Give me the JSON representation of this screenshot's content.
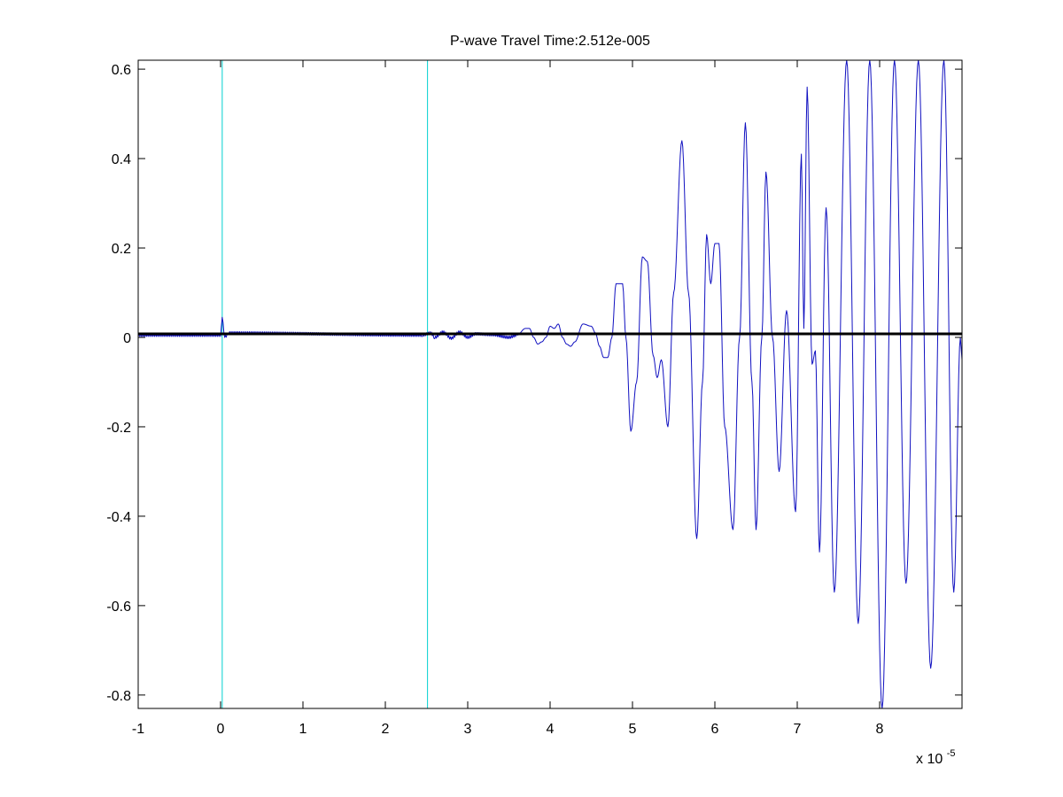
{
  "chart_data": {
    "type": "line",
    "title": "P-wave Travel Time:2.512e-005",
    "xlabel": "",
    "ylabel": "",
    "x_multiplier_label": {
      "base": "x 10",
      "exponent": "-5"
    },
    "xlim": [
      -1,
      9
    ],
    "ylim": [
      -0.83,
      0.62
    ],
    "xticks": [
      -1,
      0,
      1,
      2,
      3,
      4,
      5,
      6,
      7,
      8
    ],
    "xtick_labels": [
      "-1",
      "0",
      "1",
      "2",
      "3",
      "4",
      "5",
      "6",
      "7",
      "8"
    ],
    "yticks": [
      -0.8,
      -0.6,
      -0.4,
      -0.2,
      0,
      0.2,
      0.4,
      0.6
    ],
    "ytick_labels": [
      "-0.8",
      "-0.6",
      "-0.4",
      "-0.2",
      "0",
      "0.2",
      "0.4",
      "0.6"
    ],
    "grid": false,
    "legend": "none",
    "vertical_markers": [
      {
        "x": 0.02,
        "color": "#00d0d0"
      },
      {
        "x": 2.512,
        "color": "#00d0d0"
      }
    ],
    "threshold_line": {
      "y": 0.008,
      "color": "#000000"
    },
    "series": [
      {
        "color": "#1010c0",
        "points": [
          [
            -1,
            0.005
          ],
          [
            0.0,
            0.005
          ],
          [
            0.02,
            0.045
          ],
          [
            0.05,
            0.0
          ],
          [
            0.1,
            0.01
          ],
          [
            2.45,
            0.005
          ],
          [
            2.55,
            0.01
          ],
          [
            2.6,
            0.0
          ],
          [
            2.7,
            0.012
          ],
          [
            2.8,
            -0.002
          ],
          [
            2.9,
            0.012
          ],
          [
            3.0,
            0.0
          ],
          [
            3.1,
            0.008
          ],
          [
            3.3,
            0.006
          ],
          [
            3.5,
            0.0
          ],
          [
            3.6,
            0.005
          ],
          [
            3.7,
            0.02
          ],
          [
            3.75,
            0.02
          ],
          [
            3.8,
            0.0
          ],
          [
            3.85,
            -0.015
          ],
          [
            3.9,
            -0.01
          ],
          [
            3.95,
            0.0
          ],
          [
            4.0,
            0.025
          ],
          [
            4.05,
            0.02
          ],
          [
            4.1,
            0.03
          ],
          [
            4.15,
            0.0
          ],
          [
            4.2,
            -0.015
          ],
          [
            4.25,
            -0.02
          ],
          [
            4.3,
            -0.01
          ],
          [
            4.4,
            0.03
          ],
          [
            4.5,
            0.025
          ],
          [
            4.55,
            0.01
          ],
          [
            4.6,
            -0.02
          ],
          [
            4.65,
            -0.045
          ],
          [
            4.7,
            -0.045
          ],
          [
            4.75,
            0.0
          ],
          [
            4.8,
            0.12
          ],
          [
            4.88,
            0.12
          ],
          [
            4.92,
            0.0
          ],
          [
            4.98,
            -0.21
          ],
          [
            5.05,
            -0.1
          ],
          [
            5.12,
            0.18
          ],
          [
            5.18,
            0.17
          ],
          [
            5.25,
            -0.04
          ],
          [
            5.3,
            -0.09
          ],
          [
            5.35,
            -0.05
          ],
          [
            5.43,
            -0.2
          ],
          [
            5.5,
            0.1
          ],
          [
            5.6,
            0.44
          ],
          [
            5.68,
            0.1
          ],
          [
            5.78,
            -0.45
          ],
          [
            5.85,
            -0.1
          ],
          [
            5.9,
            0.23
          ],
          [
            5.95,
            0.12
          ],
          [
            6.0,
            0.21
          ],
          [
            6.05,
            0.21
          ],
          [
            6.12,
            -0.2
          ],
          [
            6.22,
            -0.43
          ],
          [
            6.3,
            0.0
          ],
          [
            6.37,
            0.48
          ],
          [
            6.45,
            -0.1
          ],
          [
            6.5,
            -0.43
          ],
          [
            6.57,
            0.0
          ],
          [
            6.62,
            0.37
          ],
          [
            6.7,
            0.0
          ],
          [
            6.78,
            -0.3
          ],
          [
            6.87,
            0.06
          ],
          [
            6.98,
            -0.39
          ],
          [
            7.05,
            0.41
          ],
          [
            7.08,
            0.02
          ],
          [
            7.12,
            0.56
          ],
          [
            7.18,
            -0.06
          ],
          [
            7.22,
            -0.03
          ],
          [
            7.27,
            -0.48
          ],
          [
            7.35,
            0.29
          ],
          [
            7.45,
            -0.57
          ],
          [
            7.6,
            0.62
          ],
          [
            7.74,
            -0.64
          ],
          [
            7.88,
            0.62
          ],
          [
            8.03,
            -0.83
          ],
          [
            8.18,
            0.62
          ],
          [
            8.32,
            -0.55
          ],
          [
            8.47,
            0.62
          ],
          [
            8.62,
            -0.74
          ],
          [
            8.78,
            0.62
          ],
          [
            8.9,
            -0.57
          ],
          [
            8.98,
            0.0
          ],
          [
            9.0,
            -0.05
          ]
        ]
      }
    ]
  }
}
